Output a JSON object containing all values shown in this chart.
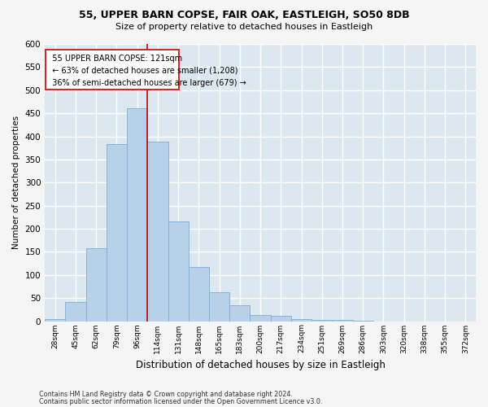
{
  "title1": "55, UPPER BARN COPSE, FAIR OAK, EASTLEIGH, SO50 8DB",
  "title2": "Size of property relative to detached houses in Eastleigh",
  "xlabel": "Distribution of detached houses by size in Eastleigh",
  "ylabel": "Number of detached properties",
  "footer1": "Contains HM Land Registry data © Crown copyright and database right 2024.",
  "footer2": "Contains public sector information licensed under the Open Government Licence v3.0.",
  "categories": [
    "28sqm",
    "45sqm",
    "62sqm",
    "79sqm",
    "96sqm",
    "114sqm",
    "131sqm",
    "148sqm",
    "165sqm",
    "183sqm",
    "200sqm",
    "217sqm",
    "234sqm",
    "251sqm",
    "269sqm",
    "286sqm",
    "303sqm",
    "320sqm",
    "338sqm",
    "355sqm",
    "372sqm"
  ],
  "values": [
    5,
    42,
    158,
    383,
    460,
    388,
    215,
    118,
    62,
    35,
    14,
    11,
    5,
    3,
    3,
    1,
    0,
    0,
    0,
    0,
    0
  ],
  "bar_color": "#b8d0e8",
  "bar_edge_color": "#7aafd4",
  "bg_color": "#dce8f0",
  "fig_color": "#f5f5f5",
  "grid_color": "#ffffff",
  "annotation_box_color": "#ffffff",
  "annotation_box_edge": "#cc0000",
  "property_line_color": "#cc0000",
  "property_bin_index": 5,
  "annotation_text_line1": "  55 UPPER BARN COPSE: 121sqm",
  "annotation_text_line2": "  ← 63% of detached houses are smaller (1,208)",
  "annotation_text_line3": "  36% of semi-detached houses are larger (679) →",
  "ylim": [
    0,
    600
  ],
  "ylim_display": 575
}
